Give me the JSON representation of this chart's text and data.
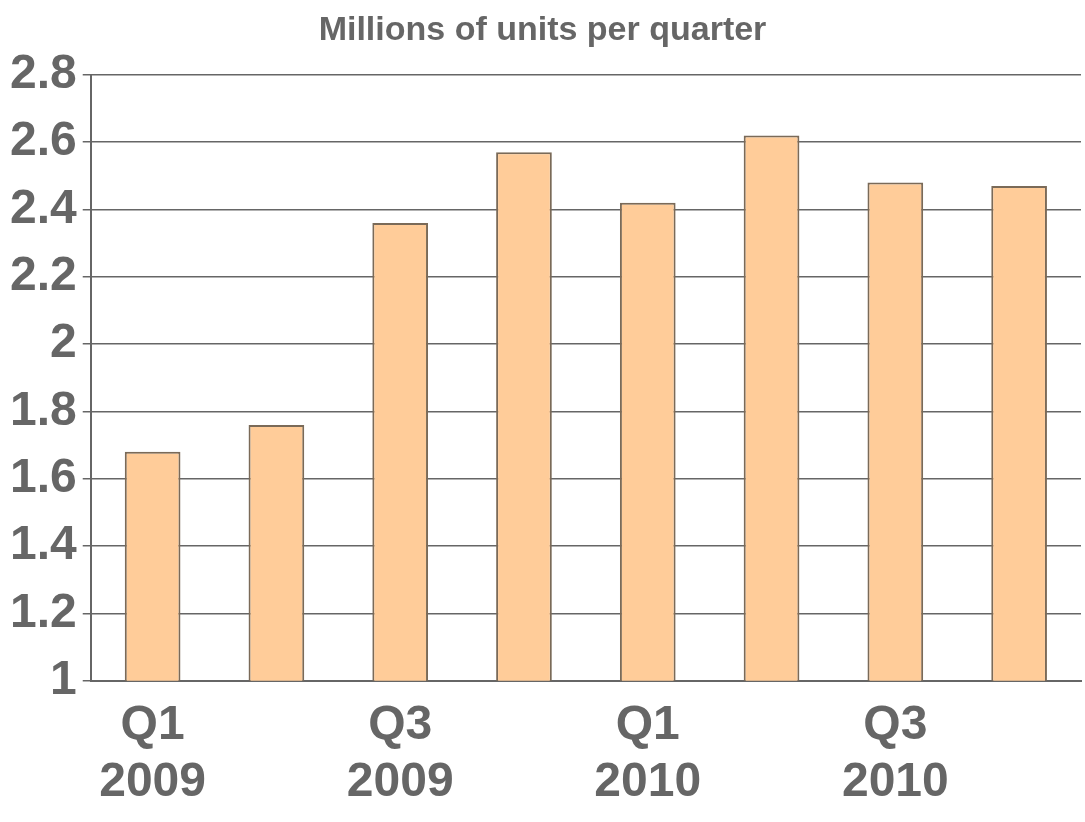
{
  "chart_data": {
    "type": "bar",
    "title": "Millions of units per quarter",
    "categories": [
      "Q1 2009",
      null,
      "Q3 2009",
      null,
      "Q1 2010",
      null,
      "Q3 2010",
      null
    ],
    "values": [
      1.68,
      1.76,
      2.36,
      2.57,
      2.42,
      2.62,
      2.48,
      2.47
    ],
    "color": "#ffcc99",
    "ylim": [
      1,
      2.8
    ],
    "yticks": [
      1,
      1.2,
      1.4,
      1.6,
      1.8,
      2,
      2.2,
      2.4,
      2.6,
      2.8
    ],
    "grid": "y"
  }
}
